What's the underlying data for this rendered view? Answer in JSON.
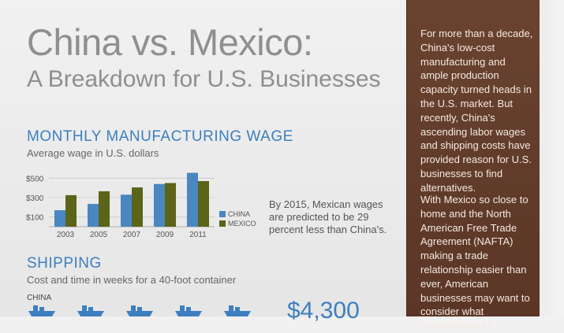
{
  "title_line1": "China vs. Mexico:",
  "title_line2": "A Breakdown for U.S. Businesses",
  "wage_section": {
    "title": "MONTHLY MANUFACTURING WAGE",
    "subtitle": "Average wage in U.S. dollars",
    "note": "By 2015, Mexican wages are predicted to be 29 percent less than China's."
  },
  "shipping_section": {
    "title": "SHIPPING",
    "subtitle": "Cost and time in weeks for a 40-foot container",
    "china_label": "CHINA",
    "china_cost": "$4,300"
  },
  "sidebar": {
    "para1": "For more than a decade, China's low-cost manufacturing and ample production capacity turned heads in the U.S. market. But recently, China's ascending labor wages and shipping costs have provided reason for U.S. businesses to find alternatives.",
    "para2": "With Mexico so close to home and the North American Free Trade Agreement (NAFTA) making a trade relationship easier than ever, American businesses may want to consider what opportunities lie"
  },
  "colors": {
    "china": "#4a86c0",
    "mexico": "#5b6418",
    "accent": "#3d7fbf",
    "sidebar": "#5e3928"
  },
  "chart_data": {
    "type": "bar",
    "categories": [
      "2003",
      "2005",
      "2007",
      "2009",
      "2011"
    ],
    "series": [
      {
        "name": "CHINA",
        "values": [
          170,
          235,
          330,
          440,
          555
        ]
      },
      {
        "name": "MEXICO",
        "values": [
          325,
          365,
          405,
          450,
          470
        ]
      }
    ],
    "ytick_labels": [
      "$100",
      "$300",
      "$500"
    ],
    "yticks": [
      100,
      300,
      500
    ],
    "ylim": [
      0,
      600
    ],
    "legend": "right"
  }
}
